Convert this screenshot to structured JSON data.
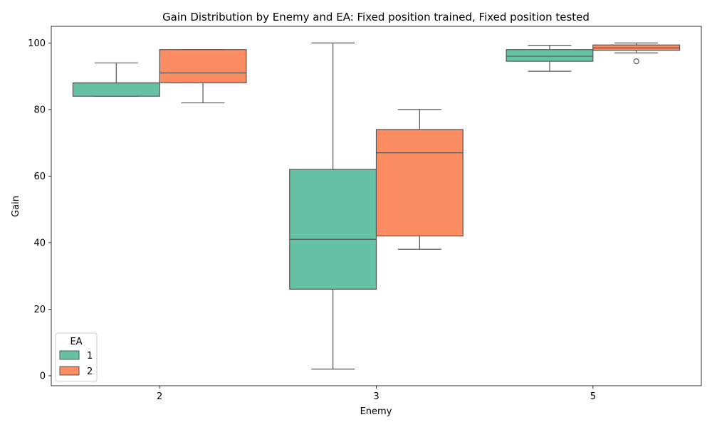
{
  "chart_data": {
    "type": "box",
    "title": "Gain Distribution by Enemy and EA: Fixed position trained, Fixed position tested",
    "xlabel": "Enemy",
    "ylabel": "Gain",
    "categories": [
      "2",
      "3",
      "5"
    ],
    "ylim": [
      -3,
      105
    ],
    "yticks": [
      0,
      20,
      40,
      60,
      80,
      100
    ],
    "legend": {
      "title": "EA",
      "placement": "lower-left"
    },
    "series": [
      {
        "name": "1",
        "color": "#66c2a5",
        "boxes": [
          {
            "category": "2",
            "whisker_low": 84,
            "q1": 84,
            "median": 88,
            "q3": 88,
            "whisker_high": 94,
            "outliers": []
          },
          {
            "category": "3",
            "whisker_low": 2,
            "q1": 26,
            "median": 41,
            "q3": 62,
            "whisker_high": 100,
            "outliers": []
          },
          {
            "category": "5",
            "whisker_low": 91.5,
            "q1": 94.5,
            "median": 96,
            "q3": 98,
            "whisker_high": 99.3,
            "outliers": []
          }
        ]
      },
      {
        "name": "2",
        "color": "#fc8d62",
        "boxes": [
          {
            "category": "2",
            "whisker_low": 82,
            "q1": 88,
            "median": 91,
            "q3": 98,
            "whisker_high": 98,
            "outliers": []
          },
          {
            "category": "3",
            "whisker_low": 38,
            "q1": 42,
            "median": 67,
            "q3": 74,
            "whisker_high": 80,
            "outliers": []
          },
          {
            "category": "5",
            "whisker_low": 97,
            "q1": 97.8,
            "median": 98.5,
            "q3": 99.4,
            "whisker_high": 100,
            "outliers": [
              94.5
            ]
          }
        ]
      }
    ]
  }
}
